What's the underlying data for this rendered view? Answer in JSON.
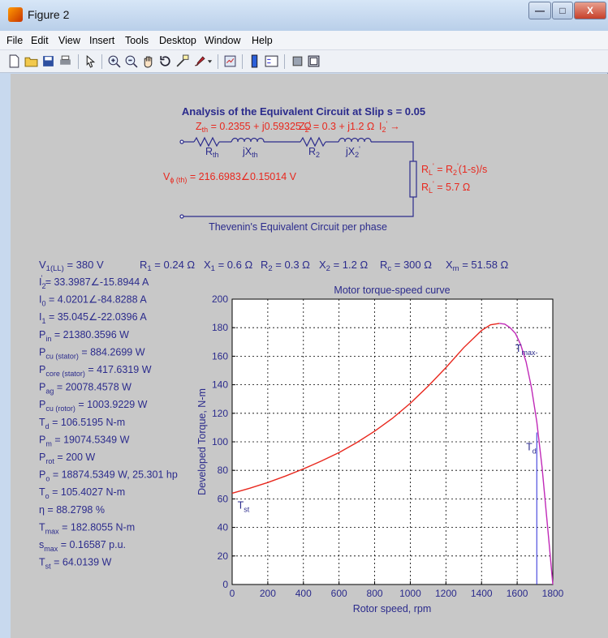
{
  "window": {
    "title": "Figure 2",
    "minimize_glyph": "—",
    "maximize_glyph": "□",
    "close_glyph": "X"
  },
  "menu": [
    "File",
    "Edit",
    "View",
    "Insert",
    "Tools",
    "Desktop",
    "Window",
    "Help"
  ],
  "toolbar_icons": [
    "new-figure-icon",
    "open-file-icon",
    "save-icon",
    "print-icon",
    "arrow-select-icon",
    "zoom-in-icon",
    "zoom-out-icon",
    "pan-hand-icon",
    "rotate-3d-icon",
    "data-cursor-icon",
    "brush-icon",
    "link-plot-icon",
    "colorbar-icon",
    "legend-icon",
    "hide-plot-tools-icon",
    "show-plot-tools-icon"
  ],
  "circuit": {
    "title": "Analysis of the Equivalent Circuit at Slip s = 0.05",
    "zth_main": "Z",
    "zth_sub": "th",
    "zth_value": " = 0.2355 + j0.59325 Ω",
    "z2_label": "Z",
    "z2_sub": "2",
    "z2_sup": "'",
    "z2_value": " = 0.3 + j1.2 Ω",
    "i2_label": "I",
    "i2_sub": "2",
    "i2_sup": "'",
    "arrow": "→",
    "rth_main": "R",
    "rth_sub": "th",
    "xth_main": "jX",
    "xth_sub": "th",
    "r2_main": "R",
    "r2_sub": "2",
    "x2_main": "jX",
    "x2_sub": "2",
    "x2_sup": "'",
    "vphi_main": "V",
    "vphi_sub": "ϕ (th)",
    "vphi_value": " = 216.6983∠0.15014 V",
    "rl_main": "R",
    "rl_sub": "L",
    "rl_sup": "'",
    "rl_formula_main": " = R",
    "rl_formula_sub": "2",
    "rl_formula_sup": "'",
    "rl_formula_tail": "(1-s)/s",
    "rl2_main": "R",
    "rl2_sub": "L",
    "rl2_sup": "'",
    "rl2_value": " = 5.7 Ω",
    "caption": "Thevenin's Equivalent Circuit per phase"
  },
  "params_line": [
    {
      "main": "V",
      "sub": "1(LL)",
      "value": " = 380 V"
    },
    {
      "main": "R",
      "sub": "1",
      "value": " = 0.24 Ω"
    },
    {
      "main": "X",
      "sub": "1",
      "value": " = 0.6 Ω"
    },
    {
      "main": "R",
      "sub": "2",
      "value": " = 0.3 Ω"
    },
    {
      "main": "X",
      "sub": "2",
      "value": " = 1.2 Ω"
    },
    {
      "main": "R",
      "sub": "c",
      "value": " = 300 Ω"
    },
    {
      "main": "X",
      "sub": "m",
      "value": " = 51.58 Ω"
    }
  ],
  "results": [
    {
      "main": "I",
      "sub": "2",
      "sup": "'",
      "value": " = 33.3987∠-15.8944 A"
    },
    {
      "main": "I",
      "sub": "0",
      "sup": "",
      "value": " = 4.0201∠-84.8288 A"
    },
    {
      "main": "I",
      "sub": "1",
      "sup": "",
      "value": " = 35.045∠-22.0396 A"
    },
    {
      "main": "P",
      "sub": "in",
      "sup": "",
      "value": " = 21380.3596 W"
    },
    {
      "main": "P",
      "sub": "cu (stator)",
      "sup": "",
      "value": " = 884.2699 W"
    },
    {
      "main": "P",
      "sub": "core (stator)",
      "sup": "",
      "value": " = 417.6319 W"
    },
    {
      "main": "P",
      "sub": "ag",
      "sup": "",
      "value": " = 20078.4578 W"
    },
    {
      "main": "P",
      "sub": "cu (rotor)",
      "sup": "",
      "value": " = 1003.9229 W"
    },
    {
      "main": "T",
      "sub": "d",
      "sup": "",
      "value": " = 106.5195 N-m"
    },
    {
      "main": "P",
      "sub": "m",
      "sup": "",
      "value": " = 19074.5349 W"
    },
    {
      "main": "P",
      "sub": "rot",
      "sup": "",
      "value": " = 200 W"
    },
    {
      "main": "P",
      "sub": "o",
      "sup": "",
      "value": " = 18874.5349 W,  25.301 hp"
    },
    {
      "main": "T",
      "sub": "o",
      "sup": "",
      "value": " = 105.4027 N-m"
    },
    {
      "main": "η",
      "sub": "",
      "sup": "",
      "value": " = 88.2798 %"
    },
    {
      "main": "T",
      "sub": "max",
      "sup": "",
      "value": " = 182.8055 N-m"
    },
    {
      "main": "s",
      "sub": "max",
      "sup": "",
      "value": " = 0.16587 p.u."
    },
    {
      "main": "T",
      "sub": "st",
      "sup": "",
      "value": " = 64.0139 W"
    }
  ],
  "colors": {
    "navy_text": "#2b2b8c",
    "red": "#e8281e",
    "magenta": "#c02ab8",
    "blue_marker": "#2a2ad8",
    "figure_bg": "#c8c8c8",
    "window_bg": "#c8d9ee"
  },
  "chart_data": {
    "type": "line",
    "title": "Motor torque-speed curve",
    "xlabel": "Rotor speed, rpm",
    "ylabel": "Developed Torque,  N-m",
    "xlim": [
      0,
      1800
    ],
    "ylim": [
      0,
      200
    ],
    "grid": true,
    "x_ticks": [
      "0",
      "200",
      "400",
      "600",
      "800",
      "1000",
      "1200",
      "1400",
      "1600",
      "1800"
    ],
    "y_ticks": [
      "0",
      "20",
      "40",
      "60",
      "80",
      "100",
      "120",
      "140",
      "160",
      "180",
      "200"
    ],
    "series": [
      {
        "color": "#e8281e",
        "x": [
          0,
          100,
          200,
          300,
          400,
          500,
          600,
          700,
          800,
          900,
          1000,
          1100,
          1200,
          1300,
          1400,
          1450,
          1500
        ],
        "y": [
          64,
          67.5,
          71.5,
          76,
          81,
          86.5,
          92.5,
          99.5,
          107.5,
          116.5,
          127,
          139,
          152,
          166,
          178,
          182,
          183
        ]
      },
      {
        "color": "#c02ab8",
        "x": [
          1500,
          1530,
          1560,
          1590,
          1620,
          1650,
          1680,
          1710,
          1740,
          1760,
          1780,
          1800
        ],
        "y": [
          183,
          182.5,
          180,
          176,
          168,
          156,
          138,
          114,
          82,
          55,
          28,
          0
        ]
      }
    ],
    "markers": [
      {
        "x": 1710,
        "y": 106.5
      }
    ],
    "annotations": [
      {
        "main": "T",
        "sub": "st",
        "x": 30,
        "y": 53
      },
      {
        "main": "T",
        "sub": "max-",
        "x": 1590,
        "y": 163
      },
      {
        "main": "T",
        "sub": "d",
        "x": 1650,
        "y": 94
      }
    ]
  }
}
